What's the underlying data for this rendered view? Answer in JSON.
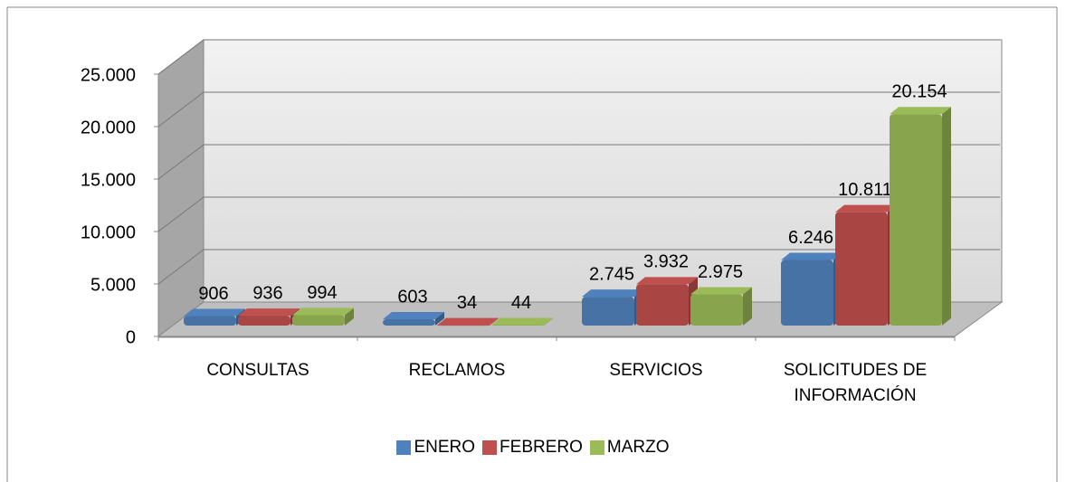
{
  "chart_data": {
    "type": "bar3d",
    "categories": [
      "CONSULTAS",
      "RECLAMOS",
      "SERVICIOS",
      "SOLICITUDES DE INFORMACIÓN"
    ],
    "series": [
      {
        "name": "ENERO",
        "color": "#4f81bd",
        "values": [
          906,
          603,
          2745,
          6246
        ],
        "value_labels": [
          "906",
          "603",
          "2.745",
          "6.246"
        ]
      },
      {
        "name": "FEBRERO",
        "color": "#c0504d",
        "values": [
          936,
          34,
          3932,
          10811
        ],
        "value_labels": [
          "936",
          "34",
          "3.932",
          "10.811"
        ]
      },
      {
        "name": "MARZO",
        "color": "#9bbb59",
        "values": [
          994,
          44,
          2975,
          20154
        ],
        "value_labels": [
          "994",
          "44",
          "2.975",
          "20.154"
        ]
      }
    ],
    "ylim": [
      0,
      25000
    ],
    "yticks": [
      0,
      {
        "value": 5000,
        "label": "5.000"
      },
      {
        "value": 10000,
        "label": "10.000"
      },
      {
        "value": 15000,
        "label": "15.000"
      },
      {
        "value": 20000,
        "label": "20.000"
      },
      {
        "value": 25000,
        "label": "25.000"
      }
    ],
    "grid": true,
    "legend": "bottom"
  }
}
